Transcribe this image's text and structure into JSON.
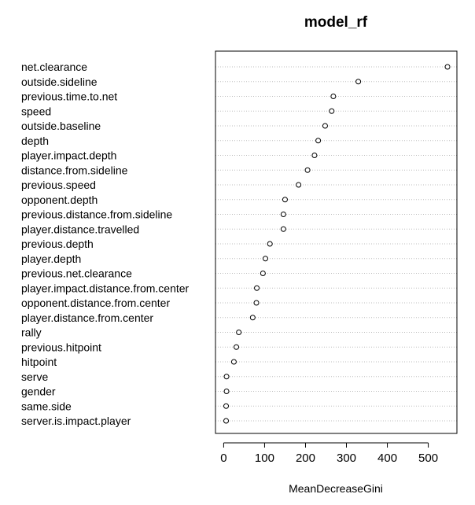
{
  "chart_data": {
    "type": "scatter",
    "subtype": "dotchart",
    "title": "model_rf",
    "xlabel": "MeanDecreaseGini",
    "ylabel": "",
    "xlim": [
      -20,
      570
    ],
    "x_ticks": [
      0,
      100,
      200,
      300,
      400,
      500
    ],
    "grid": "dotted horizontal lines per row",
    "categories": [
      "net.clearance",
      "outside.sideline",
      "previous.time.to.net",
      "speed",
      "outside.baseline",
      "depth",
      "player.impact.depth",
      "distance.from.sideline",
      "previous.speed",
      "opponent.depth",
      "previous.distance.from.sideline",
      "player.distance.travelled",
      "previous.depth",
      "player.depth",
      "previous.net.clearance",
      "player.impact.distance.from.center",
      "opponent.distance.from.center",
      "player.distance.from.center",
      "rally",
      "previous.hitpoint",
      "hitpoint",
      "serve",
      "gender",
      "same.side",
      "server.is.impact.player"
    ],
    "values": [
      547,
      329,
      268,
      264,
      248,
      231,
      222,
      205,
      183,
      150,
      146,
      146,
      113,
      102,
      96,
      81,
      80,
      71,
      37,
      31,
      25,
      7,
      7,
      6,
      6
    ]
  }
}
